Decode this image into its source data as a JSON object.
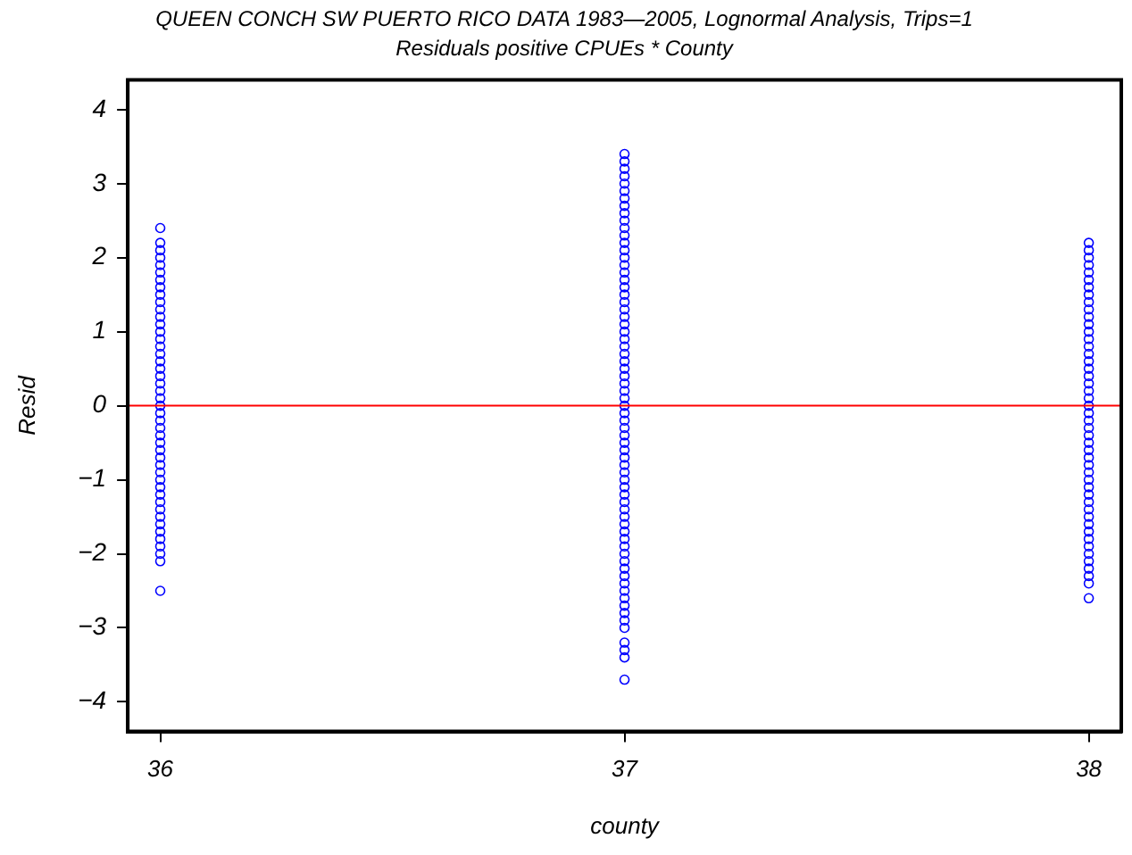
{
  "chart_data": {
    "type": "scatter",
    "title": "QUEEN CONCH SW PUERTO RICO DATA 1983—2005, Lognormal Analysis, Trips=1",
    "subtitle": "Residuals positive CPUEs * County",
    "xlabel": "county",
    "ylabel": "Resid",
    "xlim": [
      35.93,
      38.07
    ],
    "xticks": [
      36,
      37,
      38
    ],
    "ylim": [
      -4.4,
      4.4
    ],
    "yticks": [
      -4,
      -3,
      -2,
      -1,
      0,
      1,
      2,
      3,
      4
    ],
    "grid": false,
    "legend": false,
    "marker": "circle",
    "ref_lines": [
      {
        "axis": "y",
        "value": 0,
        "color": "#ff0000"
      }
    ],
    "series": [
      {
        "color": "#0000ff",
        "x": [
          36,
          36,
          36,
          36,
          36,
          36,
          36,
          36,
          36,
          36,
          36,
          36,
          36,
          36,
          36,
          36,
          36,
          36,
          36,
          36,
          36,
          36,
          36,
          36,
          36,
          36,
          36,
          36,
          36,
          36,
          36,
          36,
          36,
          36,
          36,
          36,
          36,
          36,
          36,
          36,
          36,
          36,
          36,
          36,
          36,
          36
        ],
        "values": [
          2.4,
          2.2,
          2.1,
          2.0,
          1.9,
          1.8,
          1.7,
          1.6,
          1.5,
          1.4,
          1.3,
          1.2,
          1.1,
          1.0,
          0.9,
          0.8,
          0.7,
          0.6,
          0.5,
          0.4,
          0.3,
          0.2,
          0.1,
          0.0,
          -0.1,
          -0.2,
          -0.3,
          -0.4,
          -0.5,
          -0.6,
          -0.7,
          -0.8,
          -0.9,
          -1.0,
          -1.1,
          -1.2,
          -1.3,
          -1.4,
          -1.5,
          -1.6,
          -1.7,
          -1.8,
          -1.9,
          -2.0,
          -2.1,
          -2.5
        ]
      },
      {
        "color": "#0000ff",
        "x": [
          37,
          37,
          37,
          37,
          37,
          37,
          37,
          37,
          37,
          37,
          37,
          37,
          37,
          37,
          37,
          37,
          37,
          37,
          37,
          37,
          37,
          37,
          37,
          37,
          37,
          37,
          37,
          37,
          37,
          37,
          37,
          37,
          37,
          37,
          37,
          37,
          37,
          37,
          37,
          37,
          37,
          37,
          37,
          37,
          37,
          37,
          37,
          37,
          37,
          37,
          37,
          37,
          37,
          37,
          37,
          37,
          37,
          37,
          37,
          37,
          37,
          37,
          37,
          37,
          37,
          37,
          37,
          37,
          37
        ],
        "values": [
          3.4,
          3.3,
          3.2,
          3.1,
          3.0,
          2.9,
          2.8,
          2.7,
          2.6,
          2.5,
          2.4,
          2.3,
          2.2,
          2.1,
          2.0,
          1.9,
          1.8,
          1.7,
          1.6,
          1.5,
          1.4,
          1.3,
          1.2,
          1.1,
          1.0,
          0.9,
          0.8,
          0.7,
          0.6,
          0.5,
          0.4,
          0.3,
          0.2,
          0.1,
          0.0,
          -0.1,
          -0.2,
          -0.3,
          -0.4,
          -0.5,
          -0.6,
          -0.7,
          -0.8,
          -0.9,
          -1.0,
          -1.1,
          -1.2,
          -1.3,
          -1.4,
          -1.5,
          -1.6,
          -1.7,
          -1.8,
          -1.9,
          -2.0,
          -2.1,
          -2.2,
          -2.3,
          -2.4,
          -2.5,
          -2.6,
          -2.7,
          -2.8,
          -2.9,
          -3.0,
          -3.2,
          -3.3,
          -3.4,
          -3.7
        ]
      },
      {
        "color": "#0000ff",
        "x": [
          38,
          38,
          38,
          38,
          38,
          38,
          38,
          38,
          38,
          38,
          38,
          38,
          38,
          38,
          38,
          38,
          38,
          38,
          38,
          38,
          38,
          38,
          38,
          38,
          38,
          38,
          38,
          38,
          38,
          38,
          38,
          38,
          38,
          38,
          38,
          38,
          38,
          38,
          38,
          38,
          38,
          38,
          38,
          38,
          38,
          38,
          38,
          38
        ],
        "values": [
          2.2,
          2.1,
          2.0,
          1.9,
          1.8,
          1.7,
          1.6,
          1.5,
          1.4,
          1.3,
          1.2,
          1.1,
          1.0,
          0.9,
          0.8,
          0.7,
          0.6,
          0.5,
          0.4,
          0.3,
          0.2,
          0.1,
          0.0,
          -0.1,
          -0.2,
          -0.3,
          -0.4,
          -0.5,
          -0.6,
          -0.7,
          -0.8,
          -0.9,
          -1.0,
          -1.1,
          -1.2,
          -1.3,
          -1.4,
          -1.5,
          -1.6,
          -1.7,
          -1.8,
          -1.9,
          -2.0,
          -2.1,
          -2.2,
          -2.3,
          -2.4,
          -2.6
        ]
      }
    ]
  }
}
